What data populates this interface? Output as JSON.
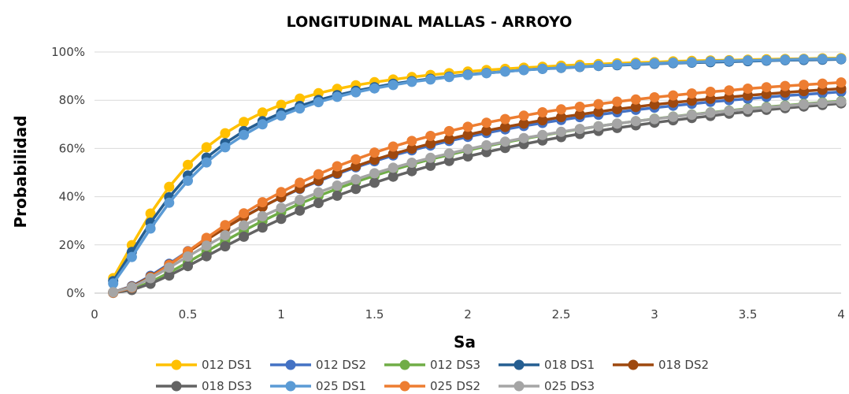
{
  "chart_data": {
    "type": "line",
    "title": "LONGITUDINAL MALLAS - ARROYO",
    "xlabel": "Sa",
    "ylabel": "Probabilidad",
    "xlim": [
      0,
      4
    ],
    "ylim": [
      0,
      1
    ],
    "x_ticks": [
      "0",
      "0.5",
      "1",
      "1.5",
      "2",
      "2.5",
      "3",
      "3.5",
      "4"
    ],
    "y_ticks": [
      "0%",
      "20%",
      "40%",
      "60%",
      "80%",
      "100%"
    ],
    "grid": "horizontal",
    "legend_position": "bottom",
    "x": [
      0.1,
      0.2,
      0.3,
      0.4,
      0.5,
      0.6,
      0.7,
      0.8,
      0.9,
      1.0,
      1.1,
      1.2,
      1.3,
      1.4,
      1.5,
      1.6,
      1.7,
      1.8,
      1.9,
      2.0,
      2.1,
      2.2,
      2.3,
      2.4,
      2.5,
      2.6,
      2.7,
      2.8,
      2.9,
      3.0,
      3.1,
      3.2,
      3.3,
      3.4,
      3.5,
      3.6,
      3.7,
      3.8,
      3.9,
      4.0
    ],
    "series": [
      {
        "name": "012 DS1",
        "color": "#FFC000",
        "values": [
          0.062,
          0.199,
          0.33,
          0.441,
          0.532,
          0.605,
          0.663,
          0.71,
          0.749,
          0.781,
          0.807,
          0.829,
          0.847,
          0.862,
          0.875,
          0.886,
          0.896,
          0.905,
          0.912,
          0.919,
          0.925,
          0.93,
          0.935,
          0.939,
          0.943,
          0.947,
          0.95,
          0.953,
          0.956,
          0.958,
          0.961,
          0.963,
          0.965,
          0.966,
          0.968,
          0.97,
          0.971,
          0.972,
          0.974,
          0.975
        ]
      },
      {
        "name": "012 DS2",
        "color": "#4472C4",
        "values": [
          0.004,
          0.029,
          0.072,
          0.122,
          0.174,
          0.225,
          0.273,
          0.317,
          0.359,
          0.397,
          0.432,
          0.464,
          0.494,
          0.522,
          0.547,
          0.571,
          0.592,
          0.612,
          0.631,
          0.648,
          0.664,
          0.679,
          0.693,
          0.706,
          0.718,
          0.73,
          0.74,
          0.75,
          0.76,
          0.769,
          0.777,
          0.785,
          0.793,
          0.8,
          0.806,
          0.813,
          0.819,
          0.824,
          0.829,
          0.835
        ]
      },
      {
        "name": "012 DS3",
        "color": "#70AD47",
        "values": [
          0.002,
          0.016,
          0.046,
          0.085,
          0.128,
          0.173,
          0.217,
          0.259,
          0.299,
          0.336,
          0.371,
          0.403,
          0.433,
          0.461,
          0.487,
          0.511,
          0.534,
          0.555,
          0.574,
          0.592,
          0.609,
          0.625,
          0.64,
          0.654,
          0.668,
          0.68,
          0.692,
          0.703,
          0.713,
          0.723,
          0.732,
          0.741,
          0.749,
          0.757,
          0.765,
          0.772,
          0.778,
          0.785,
          0.791,
          0.796
        ]
      },
      {
        "name": "018 DS1",
        "color": "#255E91",
        "values": [
          0.05,
          0.171,
          0.292,
          0.398,
          0.488,
          0.562,
          0.622,
          0.672,
          0.713,
          0.747,
          0.776,
          0.801,
          0.821,
          0.839,
          0.854,
          0.868,
          0.879,
          0.889,
          0.898,
          0.906,
          0.913,
          0.919,
          0.925,
          0.93,
          0.934,
          0.938,
          0.942,
          0.945,
          0.948,
          0.951,
          0.954,
          0.956,
          0.958,
          0.96,
          0.962,
          0.964,
          0.966,
          0.967,
          0.968,
          0.97
        ]
      },
      {
        "name": "018 DS2",
        "color": "#9E480E",
        "values": [
          0.004,
          0.027,
          0.068,
          0.118,
          0.17,
          0.221,
          0.27,
          0.316,
          0.358,
          0.398,
          0.434,
          0.467,
          0.498,
          0.526,
          0.553,
          0.577,
          0.599,
          0.62,
          0.639,
          0.657,
          0.674,
          0.689,
          0.703,
          0.717,
          0.73,
          0.741,
          0.752,
          0.763,
          0.772,
          0.782,
          0.79,
          0.798,
          0.806,
          0.813,
          0.82,
          0.826,
          0.832,
          0.838,
          0.843,
          0.848
        ]
      },
      {
        "name": "018 DS3",
        "color": "#636363",
        "values": [
          0.001,
          0.013,
          0.039,
          0.073,
          0.112,
          0.153,
          0.194,
          0.234,
          0.272,
          0.308,
          0.342,
          0.374,
          0.404,
          0.432,
          0.458,
          0.483,
          0.506,
          0.528,
          0.548,
          0.567,
          0.585,
          0.602,
          0.618,
          0.633,
          0.647,
          0.66,
          0.673,
          0.685,
          0.696,
          0.707,
          0.717,
          0.726,
          0.735,
          0.744,
          0.752,
          0.76,
          0.767,
          0.774,
          0.78,
          0.787
        ]
      },
      {
        "name": "025 DS1",
        "color": "#5B9BD5",
        "values": [
          0.04,
          0.15,
          0.268,
          0.375,
          0.466,
          0.542,
          0.605,
          0.656,
          0.7,
          0.736,
          0.766,
          0.792,
          0.814,
          0.833,
          0.849,
          0.863,
          0.876,
          0.886,
          0.896,
          0.905,
          0.912,
          0.919,
          0.925,
          0.93,
          0.935,
          0.939,
          0.943,
          0.947,
          0.95,
          0.953,
          0.956,
          0.958,
          0.961,
          0.963,
          0.965,
          0.966,
          0.968,
          0.97,
          0.971,
          0.972
        ]
      },
      {
        "name": "025 DS2",
        "color": "#ED7D31",
        "values": [
          0.002,
          0.023,
          0.065,
          0.117,
          0.173,
          0.229,
          0.282,
          0.331,
          0.377,
          0.419,
          0.458,
          0.493,
          0.526,
          0.555,
          0.583,
          0.608,
          0.631,
          0.652,
          0.672,
          0.69,
          0.707,
          0.722,
          0.736,
          0.75,
          0.762,
          0.773,
          0.784,
          0.794,
          0.803,
          0.812,
          0.82,
          0.828,
          0.835,
          0.841,
          0.848,
          0.854,
          0.859,
          0.864,
          0.869,
          0.874
        ]
      },
      {
        "name": "025 DS3",
        "color": "#A5A5A5",
        "values": [
          0.004,
          0.025,
          0.062,
          0.106,
          0.152,
          0.197,
          0.24,
          0.281,
          0.319,
          0.354,
          0.387,
          0.418,
          0.446,
          0.472,
          0.497,
          0.52,
          0.541,
          0.561,
          0.579,
          0.597,
          0.613,
          0.628,
          0.643,
          0.656,
          0.669,
          0.681,
          0.692,
          0.703,
          0.713,
          0.722,
          0.731,
          0.74,
          0.748,
          0.756,
          0.763,
          0.77,
          0.776,
          0.783,
          0.789,
          0.794
        ]
      }
    ]
  }
}
